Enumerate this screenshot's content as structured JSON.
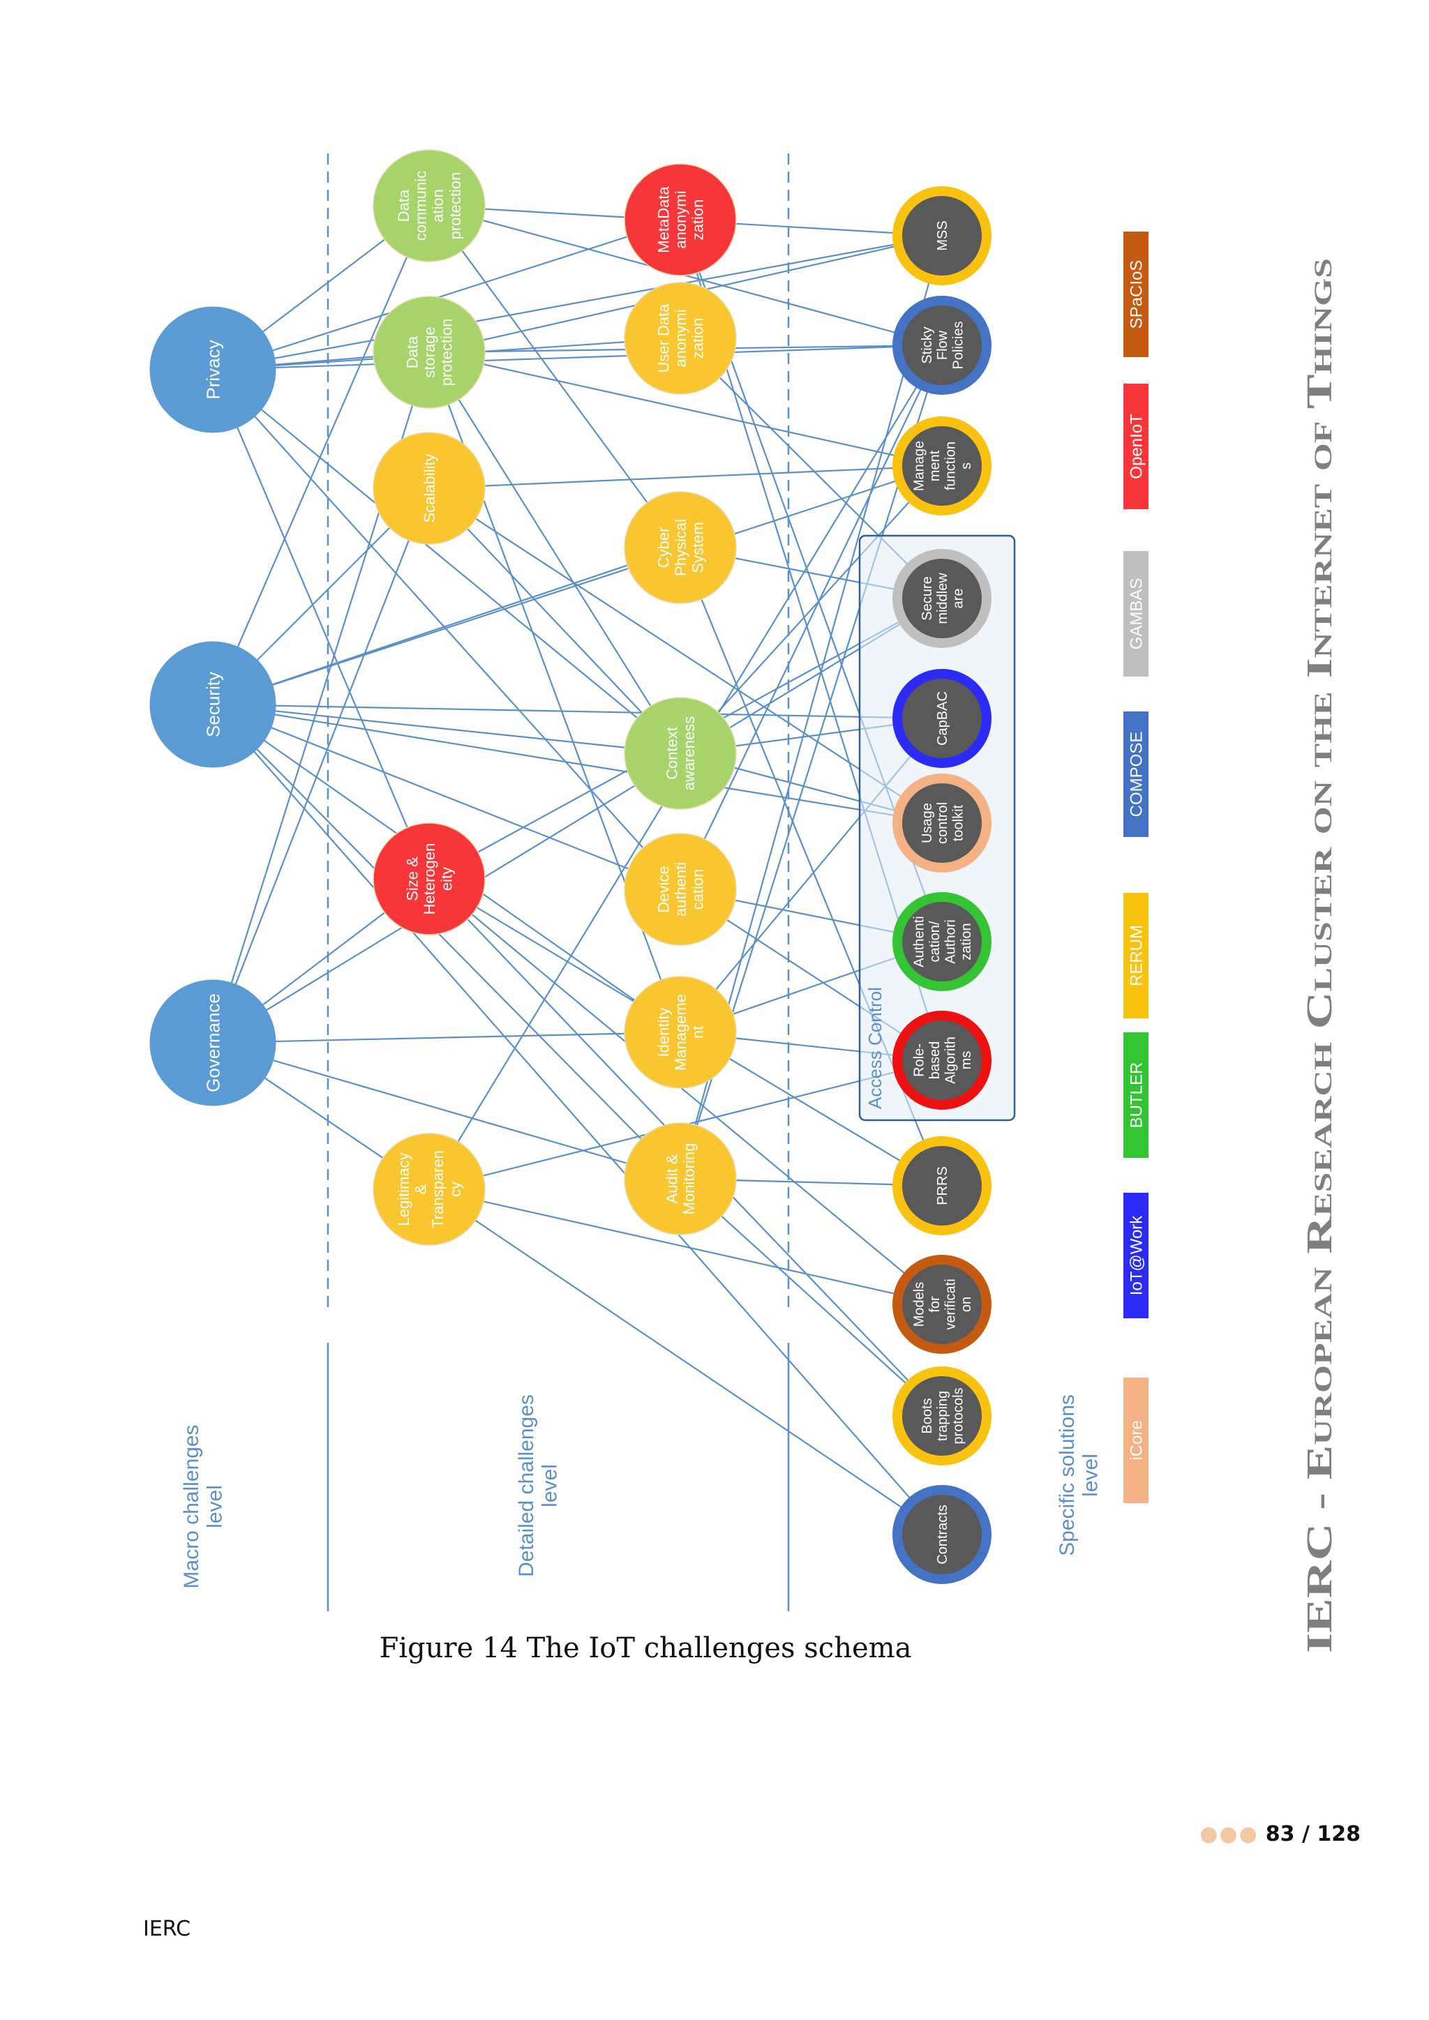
{
  "header_title": "IERC - European Research Cluster on the Internet of Things",
  "levels": [
    "Macro challenges level",
    "Detailed challenges level",
    "Specific solutions level"
  ],
  "macro": [
    {
      "id": "privacy",
      "label": "Privacy"
    },
    {
      "id": "security",
      "label": "Security"
    },
    {
      "id": "governance",
      "label": "Governance"
    }
  ],
  "detailed": [
    {
      "id": "data_comm",
      "label": "Data communication protection",
      "lines": [
        "Data",
        "communic",
        "ation",
        "protection"
      ],
      "color": "#a6d46a"
    },
    {
      "id": "data_storage",
      "label": "Data storage protection",
      "lines": [
        "Data",
        "storage",
        "protection"
      ],
      "color": "#a6d46a"
    },
    {
      "id": "scalability",
      "label": "Scalability",
      "lines": [
        "Scalability"
      ],
      "color": "#f9c630"
    },
    {
      "id": "size_het",
      "label": "Size & Heterogeneity",
      "lines": [
        "Size &",
        "Heterogen",
        "eity"
      ],
      "color": "#f7363a"
    },
    {
      "id": "legitimacy",
      "label": "Legitimacy & Transparency",
      "lines": [
        "Legitimacy",
        "&",
        "Transparen",
        "cy"
      ],
      "color": "#f9c630"
    },
    {
      "id": "metadata",
      "label": "MetaData anonymization",
      "lines": [
        "MetaData",
        "anonymi",
        "zation"
      ],
      "color": "#f7363a"
    },
    {
      "id": "userdata",
      "label": "User Data anonymization",
      "lines": [
        "User Data",
        "anonymi",
        "zation"
      ],
      "color": "#f9c630"
    },
    {
      "id": "cps",
      "label": "Cyber Physical System",
      "lines": [
        "Cyber",
        "Physical",
        "System"
      ],
      "color": "#f9c630"
    },
    {
      "id": "context",
      "label": "Context awareness",
      "lines": [
        "Context",
        "awareness"
      ],
      "color": "#a6d46a"
    },
    {
      "id": "device_auth",
      "label": "Device authentication",
      "lines": [
        "Device",
        "authenti",
        "cation"
      ],
      "color": "#f9c630"
    },
    {
      "id": "identity",
      "label": "Identity Management",
      "lines": [
        "Identity",
        "Manageme",
        "nt"
      ],
      "color": "#f9c630"
    },
    {
      "id": "audit",
      "label": "Audit & Monitoring",
      "lines": [
        "Audit &",
        "Monitoring"
      ],
      "color": "#f9c630"
    }
  ],
  "solutions": [
    {
      "id": "mss",
      "lines": [
        "MSS"
      ],
      "ring": "#f9c20f"
    },
    {
      "id": "sticky",
      "lines": [
        "Sticky",
        "Flow",
        "Policies"
      ],
      "ring": "#4472c4"
    },
    {
      "id": "mgmt",
      "lines": [
        "Manage",
        "ment",
        "function",
        "s"
      ],
      "ring": "#f9c20f"
    },
    {
      "id": "secure_mw",
      "lines": [
        "Secure",
        "middlew",
        "are"
      ],
      "ring": "#bfbfbf"
    },
    {
      "id": "capbac",
      "lines": [
        "CapBAC"
      ],
      "ring": "#2b2bf5"
    },
    {
      "id": "usage",
      "lines": [
        "Usage",
        "control",
        "toolkit"
      ],
      "ring": "#f4b183"
    },
    {
      "id": "authz",
      "lines": [
        "Authenti",
        "cation/",
        "Authori",
        "zation"
      ],
      "ring": "#33c433"
    },
    {
      "id": "rbac",
      "lines": [
        "Role-",
        "based",
        "Algorith",
        "ms"
      ],
      "ring": "#ee1111"
    },
    {
      "id": "prrs",
      "lines": [
        "PRRS"
      ],
      "ring": "#f9c20f"
    },
    {
      "id": "models",
      "lines": [
        "Models",
        "for",
        "verificati",
        "on"
      ],
      "ring": "#c55a11"
    },
    {
      "id": "boots",
      "lines": [
        "Boots",
        "trapping",
        "protocols"
      ],
      "ring": "#f9c20f"
    },
    {
      "id": "contracts",
      "lines": [
        "Contracts"
      ],
      "ring": "#4472c4"
    }
  ],
  "access_control_label": "Access Control",
  "legend": [
    {
      "label": "SPaCIoS",
      "color": "#c55a11"
    },
    {
      "label": "OpenIoT",
      "color": "#f7363a"
    },
    {
      "label": "GAMBAS",
      "color": "#bfbfbf"
    },
    {
      "label": "COMPOSE",
      "color": "#4472c4"
    },
    {
      "label": "RERUM",
      "color": "#f9c20f"
    },
    {
      "label": "BUTLER",
      "color": "#33c433"
    },
    {
      "label": "IoT@Work",
      "color": "#2b2bf5"
    },
    {
      "label": "iCore",
      "color": "#f4b183"
    }
  ],
  "caption": "Figure 14 The IoT challenges schema",
  "page": {
    "current": "83",
    "total": "128",
    "separator": " / "
  },
  "footer": "IERC"
}
